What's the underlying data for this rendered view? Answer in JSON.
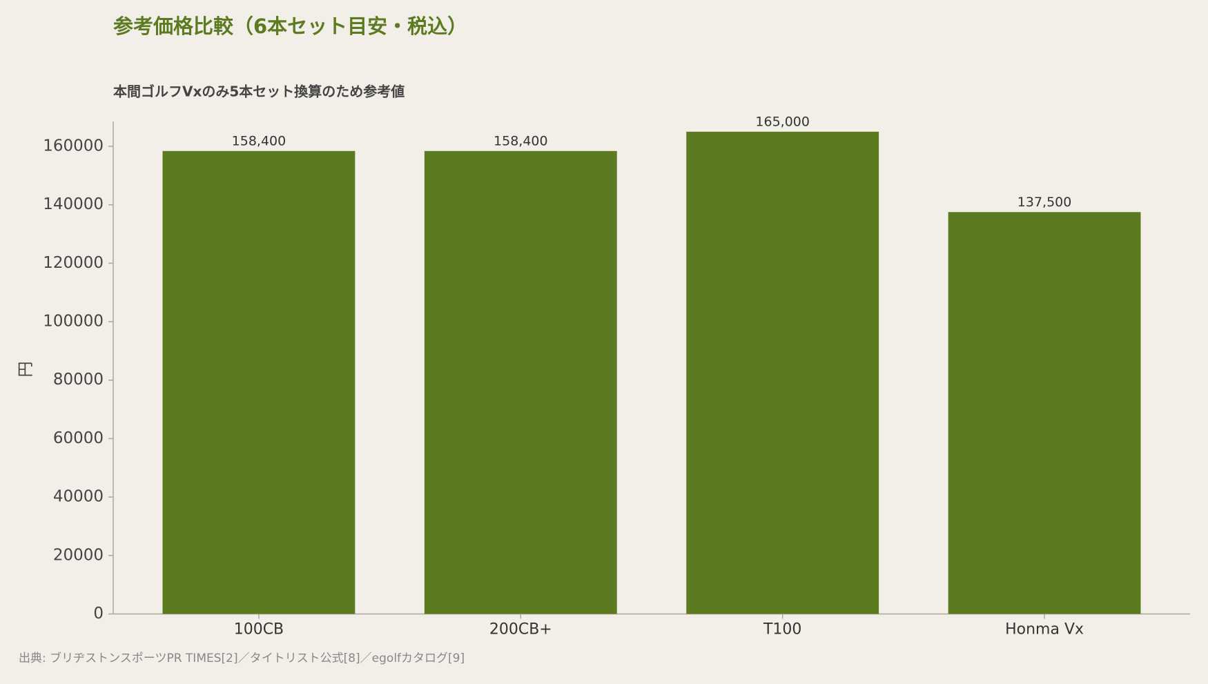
{
  "chart_data": {
    "type": "bar",
    "title": "参考価格比較（6本セット目安・税込）",
    "subtitle": "本間ゴルフVxのみ5本セット換算のため参考値",
    "y_label": "円",
    "source": "出典: ブリヂストンスポーツPR TIMES[2]／タイトリスト公式[8]／egolfカタログ[9]",
    "categories": [
      "100CB",
      "200CB+",
      "T100",
      "Honma Vx"
    ],
    "values": [
      158400,
      158400,
      165000,
      137500
    ],
    "value_labels": [
      "158,400",
      "158,400",
      "165,000",
      "137,500"
    ],
    "color": "#5c7a20",
    "ylim": [
      0,
      168500
    ],
    "yticks": [
      0,
      20000,
      40000,
      60000,
      80000,
      100000,
      120000,
      140000,
      160000
    ],
    "grid": false
  }
}
